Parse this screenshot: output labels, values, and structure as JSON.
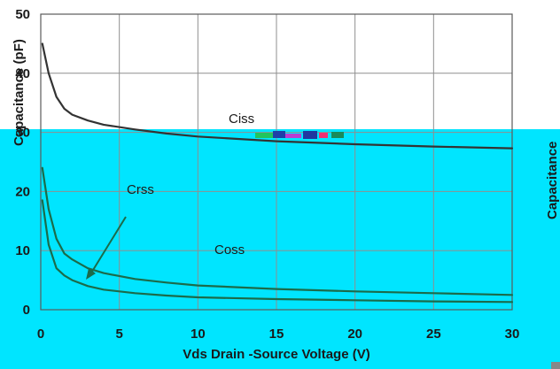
{
  "chart_data": {
    "type": "line",
    "xlabel": "Vds Drain -Source Voltage (V)",
    "ylabel": "Capacitance (pF)",
    "ylabel_right": "Capacitance",
    "xlim": [
      0,
      30
    ],
    "ylim": [
      0,
      50
    ],
    "x_ticks": [
      "0",
      "5",
      "10",
      "15",
      "20",
      "25",
      "30"
    ],
    "y_ticks": [
      "0",
      "10",
      "20",
      "30",
      "40",
      "50"
    ],
    "grid": true,
    "series": [
      {
        "name": "Ciss",
        "x": [
          0.1,
          0.5,
          1,
          1.5,
          2,
          3,
          4,
          6,
          8,
          10,
          15,
          20,
          25,
          30
        ],
        "values": [
          45,
          40,
          36,
          34,
          33,
          32,
          31.3,
          30.5,
          29.8,
          29.3,
          28.5,
          28,
          27.6,
          27.3
        ]
      },
      {
        "name": "Coss",
        "x": [
          0.1,
          0.5,
          1,
          1.5,
          2,
          3,
          4,
          6,
          8,
          10,
          15,
          20,
          25,
          30
        ],
        "values": [
          24,
          17,
          12,
          9.5,
          8.5,
          7,
          6.2,
          5.2,
          4.6,
          4.1,
          3.5,
          3.1,
          2.8,
          2.5
        ]
      },
      {
        "name": "Crss",
        "x": [
          0.1,
          0.5,
          1,
          1.5,
          2,
          3,
          4,
          6,
          8,
          10,
          15,
          20,
          25,
          30
        ],
        "values": [
          18.5,
          11,
          7,
          5.8,
          5,
          4,
          3.4,
          2.8,
          2.4,
          2.1,
          1.8,
          1.6,
          1.4,
          1.3
        ]
      }
    ],
    "annotations": [
      "Ciss",
      "Crss",
      "Coss"
    ]
  },
  "colors": {
    "top_background": "#ffffff",
    "bottom_background": "#00e5ff",
    "ciss_line": "#333333",
    "other_lines": "#1b6b4a",
    "grid": "#8f8f8f"
  }
}
